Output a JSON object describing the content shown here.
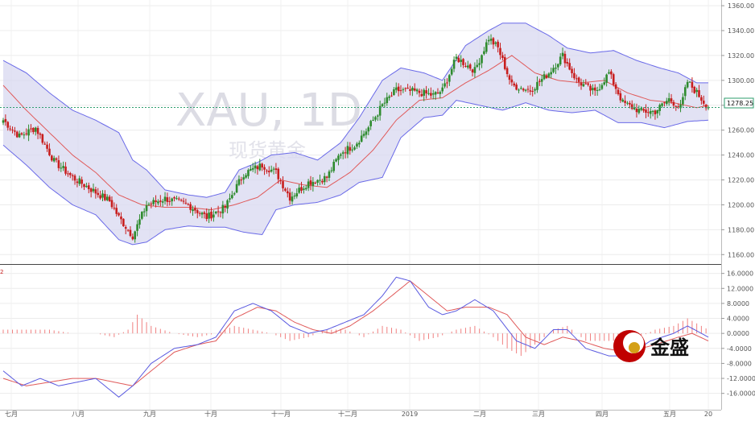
{
  "watermark": {
    "symbol": "XAU, 1D",
    "sub": "现货黄金"
  },
  "logo": {
    "text": "金盛"
  },
  "price_tag": "1278.25",
  "colors": {
    "up": "#2e8b2e",
    "down": "#c81e1e",
    "band_fill": "#d8d8f0",
    "band_line": "#6a6ae8",
    "mid_line": "#e05a5a",
    "macd_line": "#5a5ae0",
    "signal_line": "#e05a5a",
    "hist": "#f08080",
    "price_line": "#2e9e6e",
    "logo_red": "#c00000"
  },
  "chart_data": [
    {
      "type": "candlestick",
      "title": "XAU, 1D",
      "subtitle": "现货黄金",
      "x_labels": [
        "七月",
        "八月",
        "九月",
        "十月",
        "十一月",
        "十二月",
        "2019",
        "二月",
        "三月",
        "四月",
        "五月",
        "20"
      ],
      "y_ticks": [
        1160,
        1180,
        1200,
        1220,
        1240,
        1260,
        1280,
        1300,
        1320,
        1340,
        1360
      ],
      "y_tick_labels": [
        "1160.00",
        "1180.00",
        "1200.00",
        "1220.00",
        "1240.00",
        "1260.00",
        "1280.00",
        "1300.00",
        "1320.00",
        "1340.00",
        "1360.00"
      ],
      "ylim": [
        1155,
        1362
      ],
      "last_price": 1278.25,
      "indicators": [
        "Bollinger Bands",
        "Moving average"
      ],
      "grid": true,
      "anchors": {
        "close": [
          [
            0,
            1268
          ],
          [
            7,
            1255
          ],
          [
            14,
            1262
          ],
          [
            22,
            1235
          ],
          [
            30,
            1222
          ],
          [
            40,
            1210
          ],
          [
            46,
            1203
          ],
          [
            50,
            1190
          ],
          [
            56,
            1175
          ],
          [
            62,
            1200
          ],
          [
            70,
            1205
          ],
          [
            80,
            1200
          ],
          [
            88,
            1190
          ],
          [
            96,
            1198
          ],
          [
            104,
            1225
          ],
          [
            112,
            1232
          ],
          [
            118,
            1226
          ],
          [
            124,
            1206
          ],
          [
            132,
            1218
          ],
          [
            140,
            1222
          ],
          [
            146,
            1242
          ],
          [
            152,
            1248
          ],
          [
            158,
            1262
          ],
          [
            164,
            1280
          ],
          [
            170,
            1292
          ],
          [
            178,
            1291
          ],
          [
            186,
            1288
          ],
          [
            190,
            1292
          ],
          [
            196,
            1318
          ],
          [
            204,
            1308
          ],
          [
            210,
            1334
          ],
          [
            214,
            1326
          ],
          [
            220,
            1296
          ],
          [
            228,
            1292
          ],
          [
            236,
            1306
          ],
          [
            242,
            1320
          ],
          [
            248,
            1300
          ],
          [
            256,
            1290
          ],
          [
            262,
            1306
          ],
          [
            268,
            1282
          ],
          [
            276,
            1275
          ],
          [
            282,
            1275
          ],
          [
            288,
            1285
          ],
          [
            293,
            1278
          ],
          [
            296,
            1299
          ],
          [
            300,
            1290
          ],
          [
            305,
            1278
          ]
        ],
        "upper": [
          [
            0,
            1316
          ],
          [
            10,
            1306
          ],
          [
            20,
            1290
          ],
          [
            30,
            1276
          ],
          [
            40,
            1268
          ],
          [
            50,
            1258
          ],
          [
            56,
            1236
          ],
          [
            62,
            1228
          ],
          [
            70,
            1212
          ],
          [
            80,
            1208
          ],
          [
            88,
            1206
          ],
          [
            96,
            1210
          ],
          [
            102,
            1228
          ],
          [
            110,
            1234
          ],
          [
            116,
            1240
          ],
          [
            126,
            1242
          ],
          [
            136,
            1236
          ],
          [
            146,
            1250
          ],
          [
            154,
            1270
          ],
          [
            164,
            1300
          ],
          [
            172,
            1310
          ],
          [
            182,
            1306
          ],
          [
            190,
            1300
          ],
          [
            200,
            1328
          ],
          [
            210,
            1340
          ],
          [
            216,
            1346
          ],
          [
            226,
            1346
          ],
          [
            236,
            1336
          ],
          [
            244,
            1326
          ],
          [
            254,
            1322
          ],
          [
            264,
            1324
          ],
          [
            274,
            1316
          ],
          [
            284,
            1310
          ],
          [
            292,
            1306
          ],
          [
            300,
            1298
          ],
          [
            305,
            1298
          ]
        ],
        "lower": [
          [
            0,
            1248
          ],
          [
            10,
            1232
          ],
          [
            20,
            1214
          ],
          [
            30,
            1200
          ],
          [
            40,
            1192
          ],
          [
            50,
            1172
          ],
          [
            56,
            1168
          ],
          [
            62,
            1170
          ],
          [
            70,
            1180
          ],
          [
            80,
            1183
          ],
          [
            88,
            1182
          ],
          [
            96,
            1182
          ],
          [
            104,
            1178
          ],
          [
            112,
            1176
          ],
          [
            118,
            1196
          ],
          [
            126,
            1200
          ],
          [
            136,
            1202
          ],
          [
            146,
            1208
          ],
          [
            154,
            1218
          ],
          [
            164,
            1222
          ],
          [
            172,
            1254
          ],
          [
            182,
            1270
          ],
          [
            190,
            1272
          ],
          [
            196,
            1284
          ],
          [
            206,
            1280
          ],
          [
            216,
            1276
          ],
          [
            226,
            1282
          ],
          [
            236,
            1276
          ],
          [
            246,
            1274
          ],
          [
            256,
            1276
          ],
          [
            266,
            1266
          ],
          [
            276,
            1266
          ],
          [
            286,
            1262
          ],
          [
            296,
            1267
          ],
          [
            305,
            1268
          ]
        ],
        "mid": [
          [
            0,
            1296
          ],
          [
            10,
            1276
          ],
          [
            20,
            1258
          ],
          [
            30,
            1240
          ],
          [
            40,
            1226
          ],
          [
            50,
            1208
          ],
          [
            60,
            1200
          ],
          [
            70,
            1198
          ],
          [
            80,
            1198
          ],
          [
            90,
            1196
          ],
          [
            100,
            1200
          ],
          [
            110,
            1206
          ],
          [
            120,
            1220
          ],
          [
            130,
            1216
          ],
          [
            140,
            1214
          ],
          [
            150,
            1226
          ],
          [
            160,
            1244
          ],
          [
            170,
            1268
          ],
          [
            180,
            1284
          ],
          [
            190,
            1286
          ],
          [
            200,
            1298
          ],
          [
            210,
            1308
          ],
          [
            220,
            1320
          ],
          [
            230,
            1306
          ],
          [
            240,
            1300
          ],
          [
            250,
            1298
          ],
          [
            260,
            1300
          ],
          [
            270,
            1290
          ],
          [
            280,
            1284
          ],
          [
            290,
            1282
          ],
          [
            300,
            1278
          ],
          [
            305,
            1280
          ]
        ]
      }
    },
    {
      "type": "macd",
      "y_ticks": [
        16,
        12,
        8,
        4,
        0,
        -4,
        -8,
        -12,
        -16
      ],
      "y_tick_labels": [
        "16.0000",
        "12.0000",
        "8.0000",
        "4.0000",
        "0.0000",
        "-4.0000",
        "-8.0000",
        "-12.0000",
        "-16.0000"
      ],
      "ylim": [
        -18,
        17
      ],
      "anchors": {
        "macd": [
          [
            0,
            -10
          ],
          [
            8,
            -14
          ],
          [
            16,
            -12
          ],
          [
            24,
            -14
          ],
          [
            32,
            -13
          ],
          [
            40,
            -12
          ],
          [
            46,
            -15
          ],
          [
            50,
            -17
          ],
          [
            56,
            -14
          ],
          [
            64,
            -8
          ],
          [
            74,
            -4
          ],
          [
            84,
            -3
          ],
          [
            92,
            -1
          ],
          [
            100,
            6
          ],
          [
            108,
            8
          ],
          [
            116,
            6
          ],
          [
            124,
            2
          ],
          [
            132,
            0
          ],
          [
            140,
            1
          ],
          [
            148,
            3
          ],
          [
            156,
            5
          ],
          [
            164,
            10
          ],
          [
            170,
            15
          ],
          [
            176,
            14
          ],
          [
            184,
            7
          ],
          [
            190,
            5
          ],
          [
            196,
            6
          ],
          [
            204,
            9
          ],
          [
            212,
            6
          ],
          [
            222,
            -2
          ],
          [
            230,
            -4
          ],
          [
            238,
            1
          ],
          [
            244,
            1
          ],
          [
            252,
            -4
          ],
          [
            262,
            -6
          ],
          [
            270,
            -6
          ],
          [
            280,
            -2
          ],
          [
            290,
            0
          ],
          [
            296,
            2
          ],
          [
            305,
            -1
          ]
        ],
        "signal": [
          [
            0,
            -12
          ],
          [
            10,
            -14
          ],
          [
            20,
            -13
          ],
          [
            30,
            -12
          ],
          [
            40,
            -12
          ],
          [
            48,
            -13
          ],
          [
            56,
            -14
          ],
          [
            64,
            -10
          ],
          [
            74,
            -5
          ],
          [
            84,
            -3
          ],
          [
            92,
            -2
          ],
          [
            100,
            4
          ],
          [
            110,
            7
          ],
          [
            118,
            6
          ],
          [
            126,
            3
          ],
          [
            134,
            1
          ],
          [
            142,
            0
          ],
          [
            150,
            2
          ],
          [
            160,
            6
          ],
          [
            168,
            10
          ],
          [
            176,
            14
          ],
          [
            184,
            10
          ],
          [
            192,
            6
          ],
          [
            200,
            7
          ],
          [
            210,
            7
          ],
          [
            218,
            5
          ],
          [
            226,
            -1
          ],
          [
            234,
            -3
          ],
          [
            242,
            -1
          ],
          [
            250,
            -2
          ],
          [
            260,
            -4
          ],
          [
            270,
            -5
          ],
          [
            282,
            -3
          ],
          [
            292,
            -1
          ],
          [
            298,
            0
          ],
          [
            305,
            -2
          ]
        ],
        "histogram": [
          [
            0,
            1
          ],
          [
            10,
            1
          ],
          [
            20,
            1
          ],
          [
            30,
            0
          ],
          [
            40,
            0
          ],
          [
            48,
            -1
          ],
          [
            54,
            1
          ],
          [
            58,
            5
          ],
          [
            64,
            2
          ],
          [
            74,
            0
          ],
          [
            84,
            -1
          ],
          [
            92,
            0
          ],
          [
            100,
            2
          ],
          [
            108,
            1
          ],
          [
            116,
            0
          ],
          [
            124,
            -2
          ],
          [
            132,
            -1
          ],
          [
            140,
            1
          ],
          [
            148,
            1
          ],
          [
            156,
            -1
          ],
          [
            164,
            2
          ],
          [
            172,
            1
          ],
          [
            180,
            -2
          ],
          [
            188,
            -1
          ],
          [
            196,
            1
          ],
          [
            204,
            2
          ],
          [
            212,
            -1
          ],
          [
            218,
            -4
          ],
          [
            224,
            -6
          ],
          [
            230,
            -3
          ],
          [
            238,
            1
          ],
          [
            244,
            2
          ],
          [
            252,
            -2
          ],
          [
            262,
            -2
          ],
          [
            272,
            -2
          ],
          [
            282,
            1
          ],
          [
            290,
            2
          ],
          [
            296,
            4
          ],
          [
            305,
            1
          ]
        ]
      }
    }
  ]
}
